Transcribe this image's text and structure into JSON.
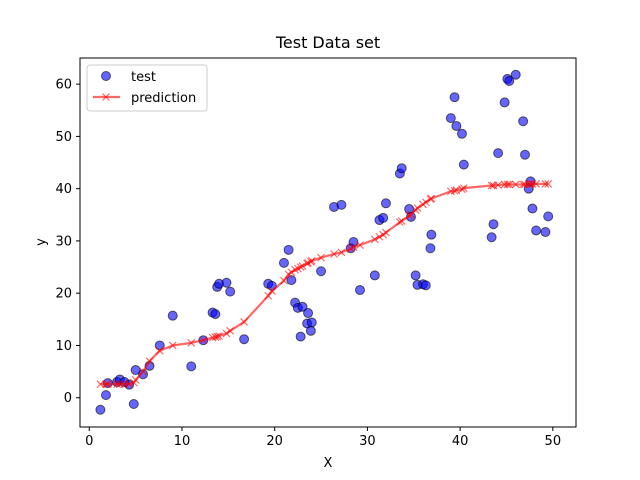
{
  "chart_data": {
    "type": "scatter",
    "title": "Test Data set",
    "xlabel": "X",
    "ylabel": "y",
    "xlim": [
      -1,
      52.5
    ],
    "ylim": [
      -5.6,
      65
    ],
    "xticks": [
      0,
      10,
      20,
      30,
      40,
      50
    ],
    "yticks": [
      0,
      10,
      20,
      30,
      40,
      50,
      60
    ],
    "grid": false,
    "legend_placement": "top-left",
    "colors": {
      "test": "#0000ff",
      "test_edge": "#000000",
      "prediction": "#ff0000"
    },
    "series": [
      {
        "name": "test",
        "kind": "scatter",
        "marker": "circle",
        "points": [
          [
            1.2,
            -2.3
          ],
          [
            1.8,
            0.5
          ],
          [
            2.0,
            2.8
          ],
          [
            3.0,
            3.0
          ],
          [
            3.3,
            3.5
          ],
          [
            3.8,
            3.0
          ],
          [
            4.3,
            2.5
          ],
          [
            4.8,
            -1.2
          ],
          [
            5.0,
            5.3
          ],
          [
            5.8,
            4.5
          ],
          [
            6.5,
            6.1
          ],
          [
            7.6,
            10.0
          ],
          [
            9.0,
            15.7
          ],
          [
            11.0,
            6.0
          ],
          [
            12.3,
            11.0
          ],
          [
            13.3,
            16.3
          ],
          [
            13.6,
            16.0
          ],
          [
            13.8,
            21.2
          ],
          [
            14.0,
            21.8
          ],
          [
            14.8,
            22.0
          ],
          [
            15.2,
            20.3
          ],
          [
            16.7,
            11.2
          ],
          [
            19.3,
            21.8
          ],
          [
            19.7,
            21.4
          ],
          [
            21.0,
            25.8
          ],
          [
            21.5,
            28.3
          ],
          [
            21.8,
            22.5
          ],
          [
            22.2,
            18.2
          ],
          [
            22.5,
            17.2
          ],
          [
            22.8,
            11.7
          ],
          [
            23.0,
            17.4
          ],
          [
            23.5,
            14.2
          ],
          [
            23.6,
            16.2
          ],
          [
            23.9,
            12.8
          ],
          [
            24.0,
            14.4
          ],
          [
            25.0,
            24.2
          ],
          [
            26.4,
            36.5
          ],
          [
            27.2,
            36.9
          ],
          [
            28.2,
            28.6
          ],
          [
            28.5,
            29.8
          ],
          [
            29.2,
            20.6
          ],
          [
            30.8,
            23.4
          ],
          [
            31.3,
            34.0
          ],
          [
            31.7,
            34.4
          ],
          [
            32.0,
            37.2
          ],
          [
            33.5,
            42.9
          ],
          [
            33.7,
            43.9
          ],
          [
            34.5,
            36.1
          ],
          [
            34.7,
            34.6
          ],
          [
            35.2,
            23.4
          ],
          [
            35.4,
            21.6
          ],
          [
            36.0,
            21.7
          ],
          [
            36.3,
            21.5
          ],
          [
            36.8,
            28.6
          ],
          [
            36.9,
            31.2
          ],
          [
            39.0,
            53.5
          ],
          [
            39.4,
            57.5
          ],
          [
            39.6,
            52.0
          ],
          [
            40.2,
            50.5
          ],
          [
            40.4,
            44.6
          ],
          [
            43.4,
            30.7
          ],
          [
            43.6,
            33.2
          ],
          [
            44.1,
            46.8
          ],
          [
            44.8,
            56.5
          ],
          [
            45.1,
            61.0
          ],
          [
            45.3,
            60.6
          ],
          [
            46.0,
            61.8
          ],
          [
            46.8,
            52.9
          ],
          [
            47.0,
            46.5
          ],
          [
            47.4,
            40.0
          ],
          [
            47.6,
            41.4
          ],
          [
            47.8,
            36.2
          ],
          [
            48.2,
            32.0
          ],
          [
            49.2,
            31.7
          ],
          [
            49.5,
            34.7
          ]
        ]
      },
      {
        "name": "prediction",
        "kind": "line",
        "marker": "x",
        "points": [
          [
            1.2,
            2.6
          ],
          [
            1.8,
            2.6
          ],
          [
            2.0,
            2.6
          ],
          [
            3.0,
            2.6
          ],
          [
            3.3,
            2.6
          ],
          [
            3.8,
            2.6
          ],
          [
            4.3,
            2.6
          ],
          [
            4.8,
            2.9
          ],
          [
            5.0,
            3.4
          ],
          [
            5.8,
            5.0
          ],
          [
            6.5,
            7.0
          ],
          [
            7.6,
            9.0
          ],
          [
            9.0,
            10.0
          ],
          [
            11.0,
            10.5
          ],
          [
            12.3,
            11.0
          ],
          [
            13.3,
            11.5
          ],
          [
            13.6,
            11.6
          ],
          [
            13.8,
            11.7
          ],
          [
            14.0,
            11.8
          ],
          [
            14.8,
            12.3
          ],
          [
            15.2,
            12.8
          ],
          [
            16.7,
            14.5
          ],
          [
            19.3,
            19.5
          ],
          [
            19.7,
            20.4
          ],
          [
            21.0,
            22.4
          ],
          [
            21.5,
            23.6
          ],
          [
            21.8,
            24.0
          ],
          [
            22.2,
            24.5
          ],
          [
            22.5,
            24.7
          ],
          [
            22.8,
            25.0
          ],
          [
            23.0,
            25.2
          ],
          [
            23.5,
            25.7
          ],
          [
            23.6,
            25.8
          ],
          [
            23.9,
            26.0
          ],
          [
            24.0,
            26.2
          ],
          [
            25.0,
            26.8
          ],
          [
            26.4,
            27.5
          ],
          [
            27.2,
            27.8
          ],
          [
            28.2,
            28.5
          ],
          [
            28.5,
            28.8
          ],
          [
            29.2,
            29.2
          ],
          [
            30.8,
            30.3
          ],
          [
            31.3,
            30.8
          ],
          [
            31.7,
            31.2
          ],
          [
            32.0,
            31.6
          ],
          [
            33.5,
            33.6
          ],
          [
            33.7,
            33.8
          ],
          [
            34.5,
            34.8
          ],
          [
            34.7,
            35.1
          ],
          [
            35.2,
            35.9
          ],
          [
            35.4,
            36.3
          ],
          [
            36.0,
            37.0
          ],
          [
            36.3,
            37.4
          ],
          [
            36.8,
            38.0
          ],
          [
            36.9,
            38.1
          ],
          [
            39.0,
            39.5
          ],
          [
            39.4,
            39.6
          ],
          [
            39.6,
            39.7
          ],
          [
            40.2,
            39.9
          ],
          [
            40.4,
            40.1
          ],
          [
            43.4,
            40.6
          ],
          [
            43.6,
            40.6
          ],
          [
            44.1,
            40.7
          ],
          [
            44.8,
            40.8
          ],
          [
            45.1,
            40.8
          ],
          [
            45.3,
            40.8
          ],
          [
            46.0,
            40.8
          ],
          [
            46.8,
            40.8
          ],
          [
            47.0,
            40.8
          ],
          [
            47.4,
            40.9
          ],
          [
            47.6,
            40.9
          ],
          [
            47.8,
            40.9
          ],
          [
            48.2,
            40.9
          ],
          [
            49.2,
            40.9
          ],
          [
            49.5,
            40.9
          ]
        ]
      }
    ]
  }
}
